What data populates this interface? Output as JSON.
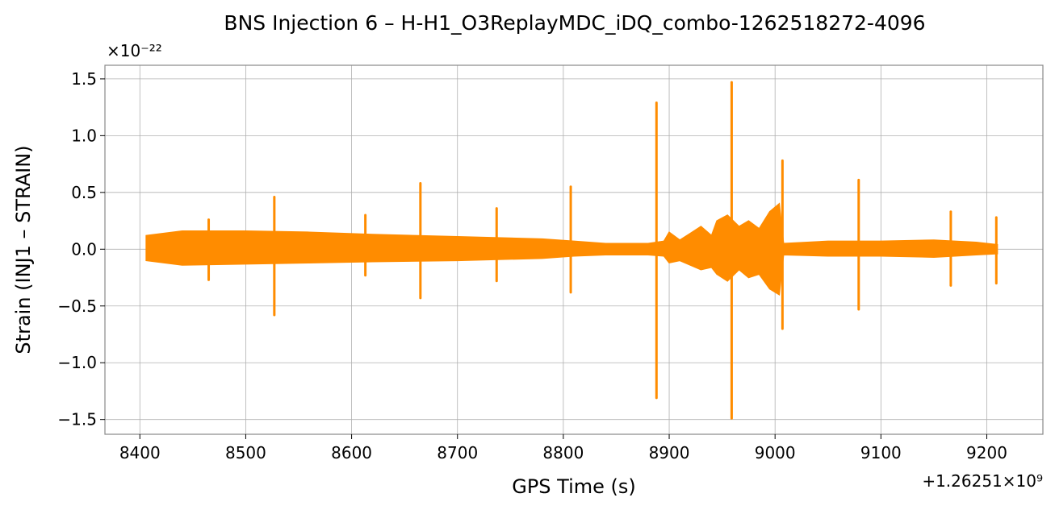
{
  "chart_data": {
    "type": "line",
    "title": "BNS Injection 6 – H-H1_O3ReplayMDC_iDQ_combo-1262518272-4096",
    "xlabel": "GPS Time (s)",
    "ylabel": "Strain (INJ1 – STRAIN)",
    "x_offset_text": "+1.26251×10⁹",
    "y_scale_text": "×10⁻²²",
    "xlim": [
      8367,
      9253
    ],
    "ylim": [
      -1.63,
      1.62
    ],
    "xticks": [
      8400,
      8500,
      8600,
      8700,
      8800,
      8900,
      9000,
      9100,
      9200
    ],
    "xtick_labels": [
      "8400",
      "8500",
      "8600",
      "8700",
      "8800",
      "8900",
      "9000",
      "9100",
      "9200"
    ],
    "yticks": [
      -1.5,
      -1.0,
      -0.5,
      0.0,
      0.5,
      1.0,
      1.5
    ],
    "ytick_labels": [
      "−1.5",
      "−1.0",
      "−0.5",
      "0.0",
      "0.5",
      "1.0",
      "1.5"
    ],
    "grid": true,
    "color": "#ff8c00",
    "series": [
      {
        "data_range": [
          8406,
          9210
        ],
        "envelope": [
          {
            "x": 8406,
            "upper": 0.12,
            "lower": -0.1
          },
          {
            "x": 8440,
            "upper": 0.16,
            "lower": -0.14
          },
          {
            "x": 8500,
            "upper": 0.16,
            "lower": -0.13
          },
          {
            "x": 8560,
            "upper": 0.15,
            "lower": -0.12
          },
          {
            "x": 8620,
            "upper": 0.13,
            "lower": -0.11
          },
          {
            "x": 8700,
            "upper": 0.11,
            "lower": -0.1
          },
          {
            "x": 8780,
            "upper": 0.09,
            "lower": -0.08
          },
          {
            "x": 8810,
            "upper": 0.07,
            "lower": -0.06
          },
          {
            "x": 8840,
            "upper": 0.05,
            "lower": -0.05
          },
          {
            "x": 8880,
            "upper": 0.05,
            "lower": -0.05
          },
          {
            "x": 8895,
            "upper": 0.07,
            "lower": -0.06
          },
          {
            "x": 8900,
            "upper": 0.15,
            "lower": -0.12
          },
          {
            "x": 8910,
            "upper": 0.08,
            "lower": -0.1
          },
          {
            "x": 8920,
            "upper": 0.14,
            "lower": -0.14
          },
          {
            "x": 8930,
            "upper": 0.2,
            "lower": -0.18
          },
          {
            "x": 8940,
            "upper": 0.12,
            "lower": -0.16
          },
          {
            "x": 8945,
            "upper": 0.25,
            "lower": -0.22
          },
          {
            "x": 8955,
            "upper": 0.3,
            "lower": -0.28
          },
          {
            "x": 8966,
            "upper": 0.2,
            "lower": -0.18
          },
          {
            "x": 8975,
            "upper": 0.25,
            "lower": -0.25
          },
          {
            "x": 8985,
            "upper": 0.18,
            "lower": -0.22
          },
          {
            "x": 8995,
            "upper": 0.33,
            "lower": -0.35
          },
          {
            "x": 9004,
            "upper": 0.4,
            "lower": -0.4
          },
          {
            "x": 9008,
            "upper": 0.05,
            "lower": -0.05
          },
          {
            "x": 9050,
            "upper": 0.07,
            "lower": -0.06
          },
          {
            "x": 9100,
            "upper": 0.07,
            "lower": -0.06
          },
          {
            "x": 9150,
            "upper": 0.08,
            "lower": -0.07
          },
          {
            "x": 9190,
            "upper": 0.06,
            "lower": -0.05
          },
          {
            "x": 9210,
            "upper": 0.04,
            "lower": -0.04
          }
        ],
        "spikes": [
          {
            "x": 8465,
            "upper": 0.26,
            "lower": -0.27
          },
          {
            "x": 8527,
            "upper": 0.46,
            "lower": -0.58
          },
          {
            "x": 8613,
            "upper": 0.3,
            "lower": -0.23
          },
          {
            "x": 8665,
            "upper": 0.58,
            "lower": -0.43
          },
          {
            "x": 8737,
            "upper": 0.36,
            "lower": -0.28
          },
          {
            "x": 8807,
            "upper": 0.55,
            "lower": -0.38
          },
          {
            "x": 8888,
            "upper": 1.29,
            "lower": -1.31
          },
          {
            "x": 8959,
            "upper": 1.47,
            "lower": -1.49
          },
          {
            "x": 9007,
            "upper": 0.78,
            "lower": -0.7
          },
          {
            "x": 9079,
            "upper": 0.61,
            "lower": -0.53
          },
          {
            "x": 9166,
            "upper": 0.33,
            "lower": -0.32
          },
          {
            "x": 9209,
            "upper": 0.28,
            "lower": -0.3
          }
        ]
      }
    ]
  }
}
